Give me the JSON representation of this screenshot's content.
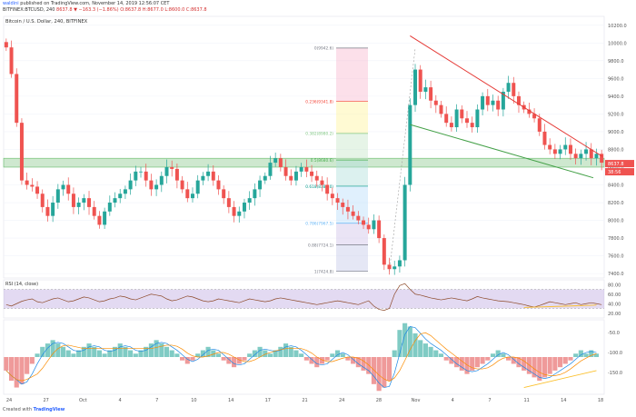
{
  "header": {
    "user": "waldini",
    "published_text": "published on TradingView.com, November 14, 2019 12:56:07 CET",
    "ticker": "BITFINEX:BTCUSD, 240",
    "ohlc": "8637.8 ▼ −163.3 (−1.86%) O:8637.8 H:8677.0 L:8600.0 C:8637.8"
  },
  "chart_data": [
    {
      "type": "line",
      "title": "Bitcoin / U.S. Dollar, 240, BITFINEX",
      "series": [
        {
          "values": [
            9950,
            9650,
            9100,
            8450,
            8400,
            8380,
            8300,
            8150,
            8050,
            8200,
            8350,
            8400,
            8300,
            8150,
            8200,
            8250,
            8150,
            8050,
            7950,
            8100,
            8200,
            8250,
            8300,
            8350,
            8450,
            8550,
            8550,
            8450,
            8350,
            8400,
            8500,
            8600,
            8580,
            8450,
            8350,
            8250,
            8300,
            8450,
            8500,
            8550,
            8450,
            8350,
            8250,
            8150,
            8050,
            8100,
            8200,
            8250,
            8350,
            8450,
            8500,
            8650,
            8700,
            8600,
            8500,
            8450,
            8550,
            8600,
            8550,
            8500,
            8450,
            8400,
            8300,
            8250,
            8200,
            8150,
            8100,
            8050,
            8000,
            7950,
            7900,
            8000,
            7800,
            7500,
            7450,
            7480,
            7550,
            8400,
            9300,
            9700,
            9450,
            9500,
            9350,
            9300,
            9200,
            9100,
            9050,
            9250,
            9150,
            9100,
            9050,
            9250,
            9400,
            9300,
            9350,
            9250,
            9450,
            9550,
            9400,
            9300,
            9250,
            9200,
            9150,
            9000,
            8850,
            8800,
            8750,
            8800,
            8850,
            8750,
            8700,
            8750,
            8800,
            8700,
            8750,
            8650
          ]
        }
      ],
      "y_ticks": [
        "10200.0",
        "10000.0",
        "9800.0",
        "9600.0",
        "9400.0",
        "9200.0",
        "9000.0",
        "8800.0",
        "8600.0",
        "8400.0",
        "8200.0",
        "8000.0",
        "7800.0",
        "7600.0",
        "7400.0"
      ],
      "x_ticks": [
        "24",
        "27",
        "Oct",
        "4",
        "7",
        "10",
        "14",
        "17",
        "21",
        "24",
        "28",
        "Nov",
        "4",
        "7",
        "11",
        "14",
        "18"
      ],
      "ylim": [
        7350,
        10300
      ],
      "fib_levels": [
        {
          "label": "0(9942.6)",
          "value": 9942.6,
          "color": "#787b86"
        },
        {
          "label": "0.236(9341.8)",
          "value": 9341.8,
          "color": "#f44336"
        },
        {
          "label": "0.382(8980.2)",
          "value": 8980.2,
          "color": "#81c784"
        },
        {
          "label": "0.5(8680.6)",
          "value": 8680.6,
          "color": "#4caf50"
        },
        {
          "label": "0.618(8385.0)",
          "value": 8385.0,
          "color": "#009688"
        },
        {
          "label": "0.786(7967.5)",
          "value": 7967.5,
          "color": "#64b5f6"
        },
        {
          "label": "0.88(7724.1)",
          "value": 7724.1,
          "color": "#787b86"
        },
        {
          "label": "1(7424.8)",
          "value": 7424.8,
          "color": "#787b86"
        }
      ],
      "price_labels": [
        "8637.8",
        "38:56"
      ],
      "colors": {
        "up": "#26a69a",
        "down": "#ef5350",
        "resistance": "#e53935",
        "support": "#43a047",
        "zone": "#a5d6a7"
      }
    },
    {
      "type": "line",
      "title": "RSI (14, close)",
      "series": [
        {
          "values": [
            38,
            35,
            40,
            45,
            48,
            50,
            44,
            42,
            46,
            50,
            52,
            48,
            44,
            46,
            50,
            54,
            52,
            48,
            44,
            46,
            50,
            52,
            56,
            54,
            50,
            48,
            52,
            56,
            60,
            58,
            56,
            50,
            46,
            48,
            52,
            56,
            54,
            50,
            46,
            44,
            46,
            50,
            48,
            46,
            44,
            42,
            46,
            50,
            48,
            46,
            44,
            46,
            50,
            52,
            50,
            48,
            46,
            44,
            42,
            40,
            38,
            40,
            42,
            44,
            46,
            44,
            42,
            40,
            38,
            42,
            46,
            35,
            28,
            26,
            30,
            60,
            78,
            82,
            70,
            60,
            58,
            55,
            52,
            50,
            48,
            50,
            52,
            50,
            48,
            46,
            50,
            55,
            52,
            50,
            48,
            46,
            45,
            44,
            42,
            40,
            38,
            35,
            33,
            36,
            40,
            44,
            42,
            40,
            38,
            40,
            42,
            38,
            40,
            42,
            40,
            38
          ]
        }
      ],
      "y_ticks": [
        "80.00",
        "60.00",
        "40.00",
        "20.00"
      ],
      "ylim": [
        10,
        90
      ],
      "band": [
        30,
        70
      ]
    },
    {
      "type": "bar",
      "series": [
        {
          "values": [
            -4,
            -7,
            -9,
            -8,
            -5,
            -2,
            1,
            3,
            4,
            5,
            4,
            3,
            2,
            1,
            2,
            3,
            4,
            3,
            2,
            1,
            2,
            3,
            4,
            3,
            2,
            1,
            2,
            3,
            4,
            5,
            4,
            3,
            2,
            1,
            -1,
            -2,
            -1,
            1,
            2,
            3,
            2,
            1,
            -1,
            -2,
            -3,
            -2,
            -1,
            1,
            2,
            3,
            2,
            1,
            2,
            3,
            4,
            3,
            2,
            1,
            -1,
            -2,
            -3,
            -2,
            -1,
            1,
            2,
            1,
            -1,
            -2,
            -3,
            -4,
            -5,
            -8,
            -10,
            -9,
            -7,
            2,
            8,
            10,
            9,
            7,
            5,
            4,
            3,
            2,
            1,
            -1,
            -2,
            -3,
            -4,
            -5,
            -4,
            -3,
            -2,
            -1,
            1,
            2,
            1,
            -1,
            -2,
            -3,
            -4,
            -5,
            -6,
            -7,
            -6,
            -5,
            -4,
            -3,
            -2,
            -1,
            1,
            2,
            1,
            2,
            1
          ]
        }
      ],
      "y_ticks": [
        "-50.0",
        "-100.0",
        "-150.0"
      ],
      "ylim": [
        -11,
        11
      ]
    }
  ],
  "footer": {
    "created_text": "Created with",
    "brand": "TradingView"
  }
}
